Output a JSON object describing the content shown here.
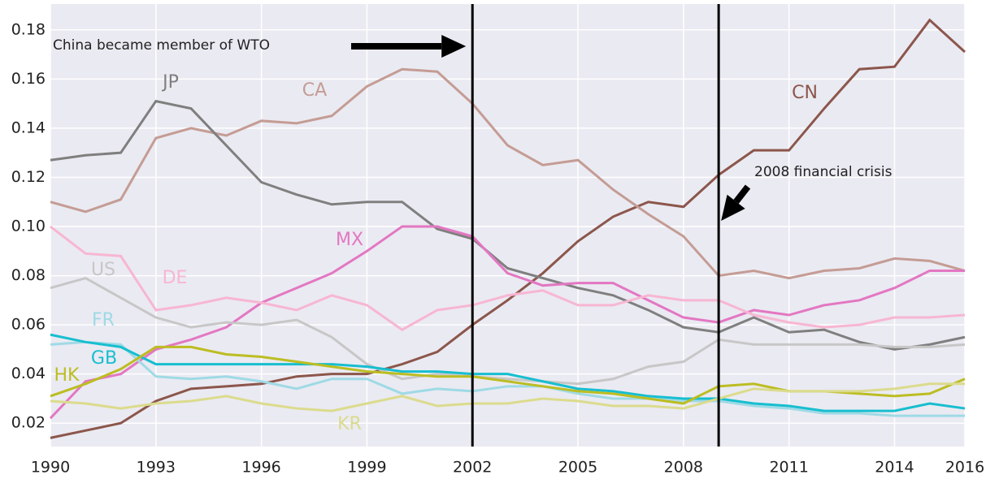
{
  "chart_data": {
    "type": "line",
    "x": [
      1990,
      1991,
      1992,
      1993,
      1994,
      1995,
      1996,
      1997,
      1998,
      1999,
      2000,
      2001,
      2002,
      2003,
      2004,
      2005,
      2006,
      2007,
      2008,
      2009,
      2010,
      2011,
      2012,
      2013,
      2014,
      2015,
      2016
    ],
    "xlim": [
      1990,
      2016
    ],
    "xticks": [
      1990,
      1993,
      1996,
      1999,
      2002,
      2005,
      2008,
      2011,
      2014,
      2016
    ],
    "ylim": [
      0.0105,
      0.1905
    ],
    "yticks": [
      0.02,
      0.04,
      0.06,
      0.08,
      {
        "value": 0.1,
        "label": "0.10"
      },
      0.12,
      0.14,
      0.16,
      0.18
    ],
    "grid": true,
    "vlines": [
      2002,
      2009
    ],
    "annotations": [
      {
        "text": "China became member of WTO",
        "x": 2002
      },
      {
        "text": "2008 financial crisis",
        "x": 2009
      }
    ],
    "series": [
      {
        "name": "CN",
        "color": "#8c564b",
        "values": [
          0.014,
          0.017,
          0.02,
          0.029,
          0.034,
          0.035,
          0.036,
          0.039,
          0.04,
          0.04,
          0.044,
          0.049,
          0.06,
          0.07,
          0.081,
          0.094,
          0.104,
          0.11,
          0.108,
          0.121,
          0.131,
          0.131,
          0.148,
          0.164,
          0.165,
          0.184,
          0.171
        ]
      },
      {
        "name": "CA",
        "color": "#c49c94",
        "values": [
          0.11,
          0.106,
          0.111,
          0.136,
          0.14,
          0.137,
          0.143,
          0.142,
          0.145,
          0.157,
          0.164,
          0.163,
          0.15,
          0.133,
          0.125,
          0.127,
          0.115,
          0.105,
          0.096,
          0.08,
          0.082,
          0.079,
          0.082,
          0.083,
          0.087,
          0.086,
          0.082
        ]
      },
      {
        "name": "JP",
        "color": "#7f7f7f",
        "values": [
          0.127,
          0.129,
          0.13,
          0.151,
          0.148,
          0.133,
          0.118,
          0.113,
          0.109,
          0.11,
          0.11,
          0.099,
          0.095,
          0.083,
          0.079,
          0.075,
          0.072,
          0.066,
          0.059,
          0.057,
          0.063,
          0.057,
          0.058,
          0.053,
          0.05,
          0.052,
          0.055
        ]
      },
      {
        "name": "MX",
        "color": "#e377c2",
        "values": [
          0.022,
          0.037,
          0.04,
          0.05,
          0.054,
          0.059,
          0.069,
          0.075,
          0.081,
          0.09,
          0.1,
          0.1,
          0.096,
          0.081,
          0.076,
          0.077,
          0.077,
          0.07,
          0.063,
          0.061,
          0.066,
          0.064,
          0.068,
          0.07,
          0.075,
          0.082,
          0.082
        ]
      },
      {
        "name": "DE",
        "color": "#f7b6d2",
        "values": [
          0.1,
          0.089,
          0.088,
          0.066,
          0.068,
          0.071,
          0.069,
          0.066,
          0.072,
          0.068,
          0.058,
          0.066,
          0.068,
          0.072,
          0.074,
          0.068,
          0.068,
          0.072,
          0.07,
          0.07,
          0.064,
          0.061,
          0.059,
          0.06,
          0.063,
          0.063,
          0.064
        ]
      },
      {
        "name": "US",
        "color": "#c7c7c7",
        "values": [
          0.075,
          0.079,
          0.071,
          0.063,
          0.059,
          0.061,
          0.06,
          0.062,
          0.055,
          0.044,
          0.038,
          0.04,
          0.039,
          0.038,
          0.037,
          0.036,
          0.038,
          0.043,
          0.045,
          0.054,
          0.052,
          0.052,
          0.052,
          0.052,
          0.051,
          0.051,
          0.052
        ]
      },
      {
        "name": "FR",
        "color": "#9edae5",
        "values": [
          0.052,
          0.053,
          0.052,
          0.039,
          0.038,
          0.039,
          0.037,
          0.034,
          0.038,
          0.038,
          0.032,
          0.034,
          0.033,
          0.035,
          0.035,
          0.032,
          0.03,
          0.03,
          0.029,
          0.029,
          0.027,
          0.026,
          0.024,
          0.024,
          0.023,
          0.023,
          0.023
        ]
      },
      {
        "name": "GB",
        "color": "#17becf",
        "values": [
          0.056,
          0.053,
          0.051,
          0.044,
          0.044,
          0.044,
          0.044,
          0.044,
          0.044,
          0.043,
          0.041,
          0.041,
          0.04,
          0.04,
          0.037,
          0.034,
          0.033,
          0.031,
          0.03,
          0.03,
          0.028,
          0.027,
          0.025,
          0.025,
          0.025,
          0.028,
          0.026
        ]
      },
      {
        "name": "HK",
        "color": "#bcbd22",
        "values": [
          0.031,
          0.036,
          0.042,
          0.051,
          0.051,
          0.048,
          0.047,
          0.045,
          0.043,
          0.041,
          0.04,
          0.039,
          0.039,
          0.037,
          0.035,
          0.033,
          0.032,
          0.03,
          0.028,
          0.035,
          0.036,
          0.033,
          0.033,
          0.032,
          0.031,
          0.032,
          0.038
        ]
      },
      {
        "name": "KR",
        "color": "#dbdb8d",
        "values": [
          0.029,
          0.028,
          0.026,
          0.028,
          0.029,
          0.031,
          0.028,
          0.026,
          0.025,
          0.028,
          0.031,
          0.027,
          0.028,
          0.028,
          0.03,
          0.029,
          0.027,
          0.027,
          0.026,
          0.03,
          0.034,
          0.033,
          0.033,
          0.033,
          0.034,
          0.036,
          0.036
        ]
      }
    ]
  }
}
